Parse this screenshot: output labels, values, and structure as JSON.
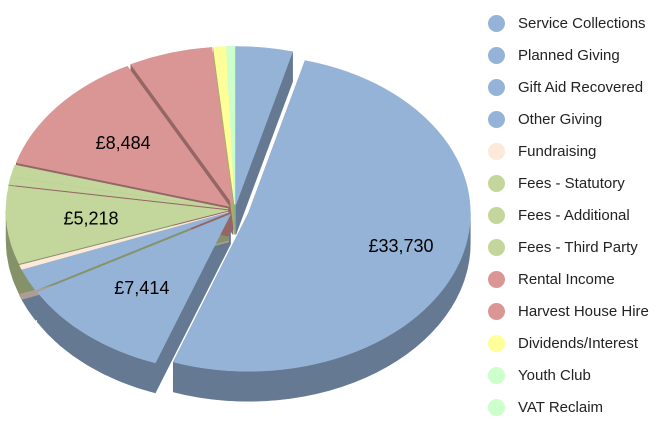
{
  "chart_data": {
    "type": "pie3d",
    "categories": [
      "Service Collections",
      "Planned Giving",
      "Gift Aid Recovered",
      "Other Giving",
      "Fundraising",
      "Fees - Statutory",
      "Fees - Additional",
      "Fees - Third Party",
      "Rental Income",
      "Harvest House Hire",
      "Dividends/Interest",
      "Youth Club",
      "VAT Reclaim"
    ],
    "values": [
      2700,
      33730,
      7414,
      1500,
      300,
      5218,
      500,
      800,
      8484,
      4000,
      600,
      200,
      200
    ],
    "value_labels": [
      null,
      "£33,730",
      "£7,414",
      null,
      null,
      "£5,218",
      null,
      null,
      "£8,484",
      null,
      null,
      null,
      null
    ],
    "colors": [
      "#95b3d7",
      "#95b3d7",
      "#95b3d7",
      "#95b3d7",
      "#fde9d9",
      "#c3d69b",
      "#c3d69b",
      "#c3d69b",
      "#d99694",
      "#d99694",
      "#ffff99",
      "#ccffcc",
      "#ccffcc"
    ],
    "legend": "right"
  }
}
